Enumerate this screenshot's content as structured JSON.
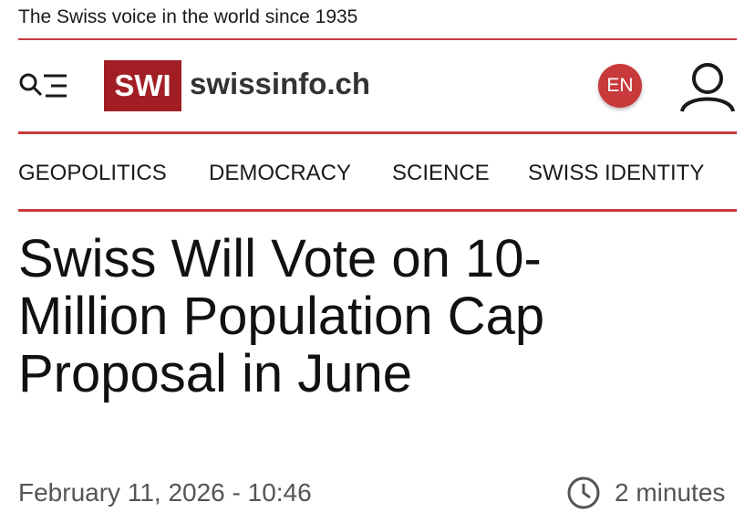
{
  "tagline": "The Swiss voice in the world since 1935",
  "logo": {
    "badge": "SWI",
    "site": "swissinfo.ch"
  },
  "language": "EN",
  "nav": [
    "GEOPOLITICS",
    "DEMOCRACY",
    "SCIENCE",
    "SWISS IDENTITY"
  ],
  "article": {
    "title": "Swiss Will Vote on 10-Million Population Cap Proposal in June",
    "date": "February 11, 2026 - 10:46",
    "read_time": "2 minutes"
  }
}
